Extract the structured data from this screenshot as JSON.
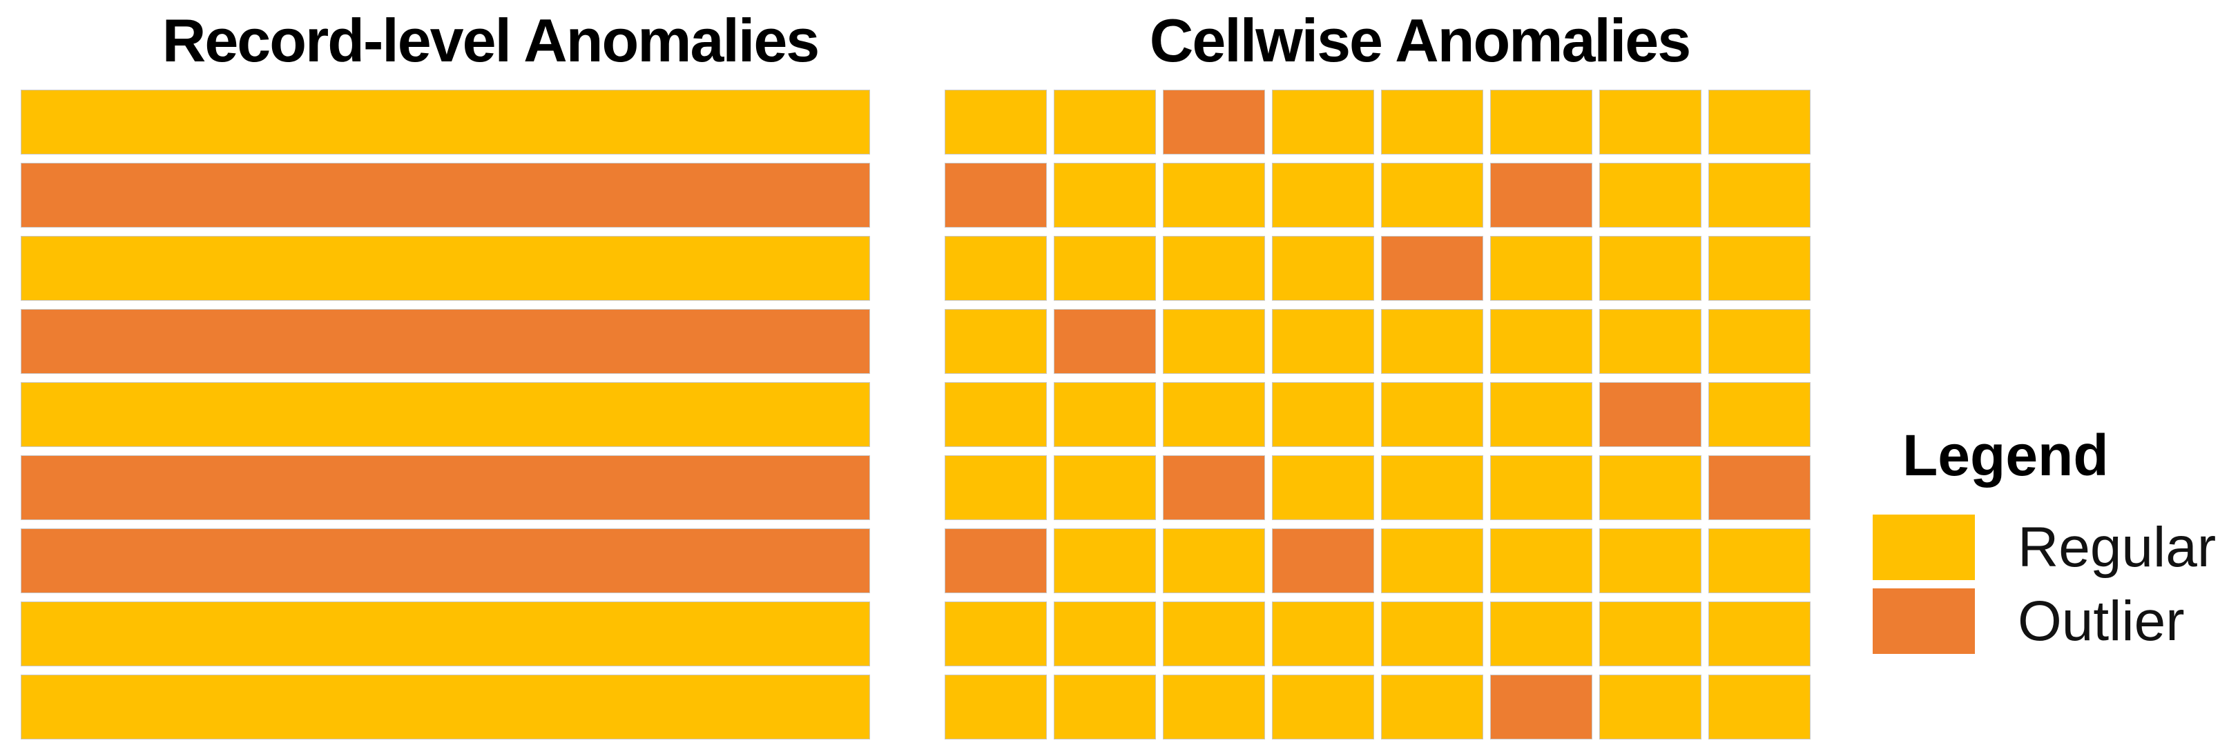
{
  "figure": {
    "record_panel": {
      "title": "Record-level Anomalies",
      "rows": [
        "regular",
        "outlier",
        "regular",
        "outlier",
        "regular",
        "outlier",
        "outlier",
        "regular",
        "regular"
      ]
    },
    "cellwise_panel": {
      "title": "Cellwise Anomalies",
      "grid": [
        [
          "regular",
          "regular",
          "outlier",
          "regular",
          "regular",
          "regular",
          "regular",
          "regular"
        ],
        [
          "outlier",
          "regular",
          "regular",
          "regular",
          "regular",
          "outlier",
          "regular",
          "regular"
        ],
        [
          "regular",
          "regular",
          "regular",
          "regular",
          "outlier",
          "regular",
          "regular",
          "regular"
        ],
        [
          "regular",
          "outlier",
          "regular",
          "regular",
          "regular",
          "regular",
          "regular",
          "regular"
        ],
        [
          "regular",
          "regular",
          "regular",
          "regular",
          "regular",
          "regular",
          "outlier",
          "regular"
        ],
        [
          "regular",
          "regular",
          "outlier",
          "regular",
          "regular",
          "regular",
          "regular",
          "outlier"
        ],
        [
          "outlier",
          "regular",
          "regular",
          "outlier",
          "regular",
          "regular",
          "regular",
          "regular"
        ],
        [
          "regular",
          "regular",
          "regular",
          "regular",
          "regular",
          "regular",
          "regular",
          "regular"
        ],
        [
          "regular",
          "regular",
          "regular",
          "regular",
          "regular",
          "outlier",
          "regular",
          "regular"
        ]
      ]
    },
    "legend": {
      "title": "Legend",
      "items": [
        {
          "label": "Regular",
          "type": "regular",
          "color": "#FFC000"
        },
        {
          "label": "Outlier",
          "type": "outlier",
          "color": "#ED7D31"
        }
      ]
    },
    "colors": {
      "regular": "#FFC000",
      "outlier": "#ED7D31",
      "background": "#FFFFFF",
      "text": "#000000",
      "cell_border": "#C9C7C5"
    }
  },
  "chart_data": [
    {
      "type": "heatmap",
      "title": "Record-level Anomalies",
      "rows": 9,
      "cols": 1,
      "values": [
        [
          0
        ],
        [
          1
        ],
        [
          0
        ],
        [
          1
        ],
        [
          0
        ],
        [
          1
        ],
        [
          1
        ],
        [
          0
        ],
        [
          0
        ]
      ],
      "value_meaning": {
        "0": "Regular",
        "1": "Outlier"
      },
      "legend_position": "right",
      "grid": false
    },
    {
      "type": "heatmap",
      "title": "Cellwise Anomalies",
      "rows": 9,
      "cols": 8,
      "values": [
        [
          0,
          0,
          1,
          0,
          0,
          0,
          0,
          0
        ],
        [
          1,
          0,
          0,
          0,
          0,
          1,
          0,
          0
        ],
        [
          0,
          0,
          0,
          0,
          1,
          0,
          0,
          0
        ],
        [
          0,
          1,
          0,
          0,
          0,
          0,
          0,
          0
        ],
        [
          0,
          0,
          0,
          0,
          0,
          0,
          1,
          0
        ],
        [
          0,
          0,
          1,
          0,
          0,
          0,
          0,
          1
        ],
        [
          1,
          0,
          0,
          1,
          0,
          0,
          0,
          0
        ],
        [
          0,
          0,
          0,
          0,
          0,
          0,
          0,
          0
        ],
        [
          0,
          0,
          0,
          0,
          0,
          1,
          0,
          0
        ]
      ],
      "value_meaning": {
        "0": "Regular",
        "1": "Outlier"
      },
      "legend_entries": [
        "Regular",
        "Outlier"
      ],
      "legend_position": "right",
      "grid": false
    }
  ]
}
